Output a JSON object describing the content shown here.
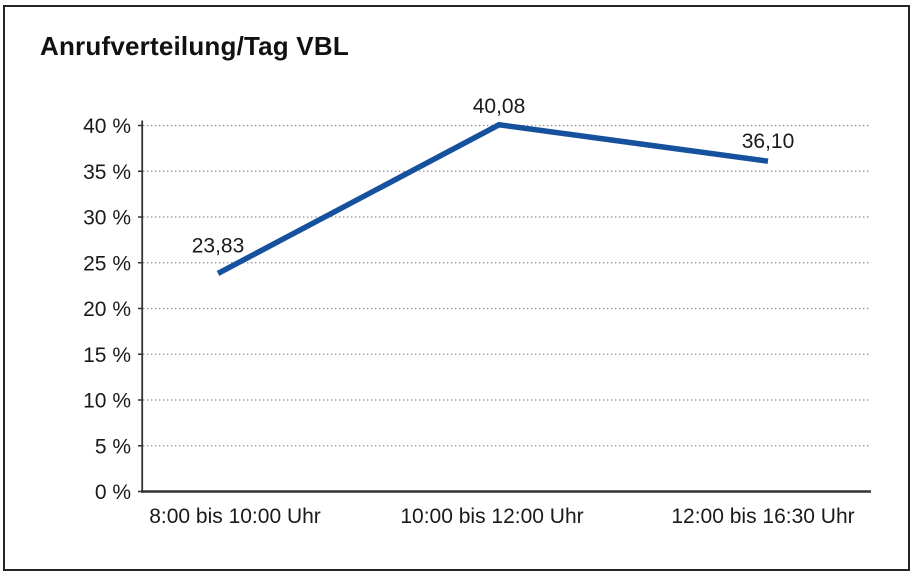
{
  "chart_data": {
    "type": "line",
    "title": "Anrufverteilung/Tag VBL",
    "categories": [
      "8:00 bis 10:00 Uhr",
      "10:00 bis 12:00 Uhr",
      "12:00 bis 16:30 Uhr"
    ],
    "series": [
      {
        "values": [
          23.83,
          40.08,
          36.1
        ],
        "data_labels": [
          "23,83",
          "40,08",
          "36,10"
        ],
        "color": "#15519d"
      }
    ],
    "ylim": [
      0,
      40
    ],
    "y_tick_step": 5,
    "y_tick_labels": [
      "0 %",
      "5 %",
      "10 %",
      "15 %",
      "20 %",
      "25 %",
      "30 %",
      "35 %",
      "40 %"
    ],
    "xlabel": "",
    "ylabel": "",
    "grid": "dotted-horizontal",
    "legend": "none",
    "colors": {
      "line": "#15519d",
      "grid": "#8c8c8c",
      "axis": "#333333",
      "text": "#1a1a1a",
      "border": "#252525",
      "background": "#ffffff"
    }
  }
}
